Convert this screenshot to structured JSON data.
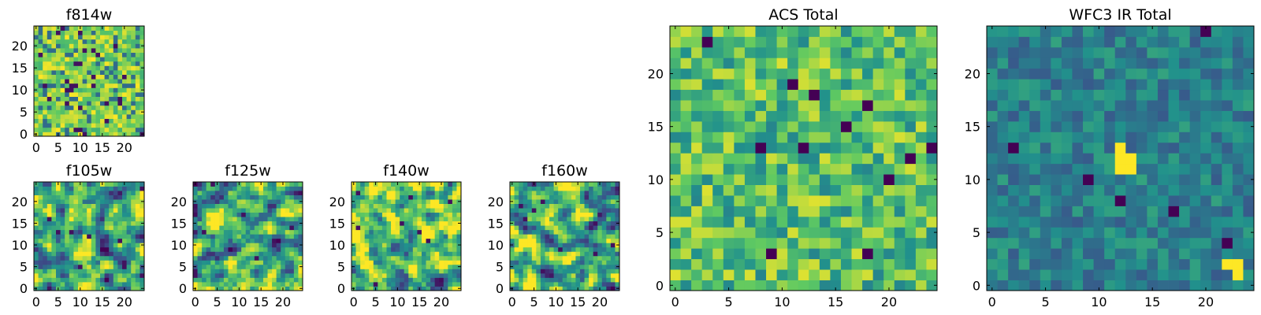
{
  "colormap": [
    "#440154",
    "#3b528b",
    "#21918c",
    "#5ec962",
    "#fde725"
  ],
  "chart_data": [
    {
      "type": "heatmap",
      "id": "f814w",
      "title": "f814w",
      "grid_size": 25,
      "xlim": [
        0,
        24
      ],
      "ylim": [
        0,
        24
      ],
      "xticks": [
        0,
        5,
        10,
        15,
        20
      ],
      "yticks": [
        0,
        5,
        10,
        15,
        20
      ],
      "value_range": [
        0,
        1
      ],
      "pattern": "noisy",
      "seed": 814
    },
    {
      "type": "heatmap",
      "id": "f105w",
      "title": "f105w",
      "grid_size": 25,
      "xlim": [
        0,
        24
      ],
      "ylim": [
        0,
        24
      ],
      "xticks": [
        0,
        5,
        10,
        15,
        20
      ],
      "yticks": [
        0,
        5,
        10,
        15,
        20
      ],
      "value_range": [
        0,
        1
      ],
      "pattern": "smooth",
      "seed": 105
    },
    {
      "type": "heatmap",
      "id": "f125w",
      "title": "f125w",
      "grid_size": 25,
      "xlim": [
        0,
        24
      ],
      "ylim": [
        0,
        24
      ],
      "xticks": [
        0,
        5,
        10,
        15,
        20
      ],
      "yticks": [
        0,
        5,
        10,
        15,
        20
      ],
      "value_range": [
        0,
        1
      ],
      "pattern": "smooth",
      "seed": 125
    },
    {
      "type": "heatmap",
      "id": "f140w",
      "title": "f140w",
      "grid_size": 25,
      "xlim": [
        0,
        24
      ],
      "ylim": [
        0,
        24
      ],
      "xticks": [
        0,
        5,
        10,
        15,
        20
      ],
      "yticks": [
        0,
        5,
        10,
        15,
        20
      ],
      "value_range": [
        0,
        1
      ],
      "pattern": "smooth",
      "seed": 140
    },
    {
      "type": "heatmap",
      "id": "f160w",
      "title": "f160w",
      "grid_size": 25,
      "xlim": [
        0,
        24
      ],
      "ylim": [
        0,
        24
      ],
      "xticks": [
        0,
        5,
        10,
        15,
        20
      ],
      "yticks": [
        0,
        5,
        10,
        15,
        20
      ],
      "value_range": [
        0,
        1
      ],
      "pattern": "smooth",
      "seed": 160
    },
    {
      "type": "heatmap",
      "id": "acs-total",
      "title": "ACS Total",
      "grid_size": 25,
      "xlim": [
        0,
        24
      ],
      "ylim": [
        0,
        24
      ],
      "xticks": [
        0,
        5,
        10,
        15,
        20
      ],
      "yticks": [
        0,
        5,
        10,
        15,
        20
      ],
      "value_range": [
        0,
        1
      ],
      "pattern": "bright",
      "seed": 7,
      "notable_cells": [
        {
          "x": 3,
          "y": 23,
          "value": 0.0
        },
        {
          "x": 8,
          "y": 13,
          "value": 0.0
        },
        {
          "x": 13,
          "y": 18,
          "value": 0.0
        },
        {
          "x": 12,
          "y": 13,
          "value": 0.0
        },
        {
          "x": 18,
          "y": 17,
          "value": 0.0
        },
        {
          "x": 20,
          "y": 10,
          "value": 0.0
        },
        {
          "x": 22,
          "y": 12,
          "value": 0.0
        },
        {
          "x": 24,
          "y": 13,
          "value": 0.0
        },
        {
          "x": 18,
          "y": 3,
          "value": 0.0
        },
        {
          "x": 9,
          "y": 3,
          "value": 0.0
        },
        {
          "x": 11,
          "y": 19,
          "value": 0.0
        },
        {
          "x": 16,
          "y": 15,
          "value": 0.0
        }
      ]
    },
    {
      "type": "heatmap",
      "id": "wfc3-ir-total",
      "title": "WFC3 IR Total",
      "grid_size": 25,
      "xlim": [
        0,
        24
      ],
      "ylim": [
        0,
        24
      ],
      "xticks": [
        0,
        5,
        10,
        15,
        20
      ],
      "yticks": [
        0,
        5,
        10,
        15,
        20
      ],
      "value_range": [
        0,
        1
      ],
      "pattern": "dark",
      "seed": 31,
      "notable_cells": [
        {
          "x": 12,
          "y": 13,
          "value": 1.0
        },
        {
          "x": 12,
          "y": 12,
          "value": 1.0
        },
        {
          "x": 13,
          "y": 12,
          "value": 1.0
        },
        {
          "x": 12,
          "y": 11,
          "value": 1.0
        },
        {
          "x": 13,
          "y": 11,
          "value": 1.0
        },
        {
          "x": 22,
          "y": 2,
          "value": 1.0
        },
        {
          "x": 23,
          "y": 2,
          "value": 1.0
        },
        {
          "x": 23,
          "y": 1,
          "value": 1.0
        },
        {
          "x": 2,
          "y": 13,
          "value": 0.0
        },
        {
          "x": 9,
          "y": 10,
          "value": 0.0
        },
        {
          "x": 12,
          "y": 8,
          "value": 0.0
        },
        {
          "x": 17,
          "y": 7,
          "value": 0.0
        },
        {
          "x": 22,
          "y": 4,
          "value": 0.0
        },
        {
          "x": 20,
          "y": 24,
          "value": 0.0
        }
      ]
    }
  ]
}
